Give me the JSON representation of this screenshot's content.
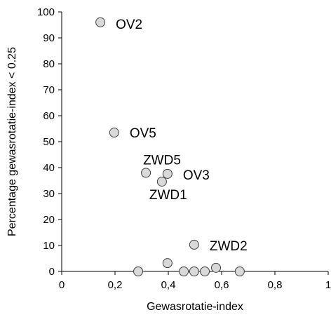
{
  "chart_data": {
    "type": "scatter",
    "x_label": "Gewasrotatie-index",
    "y_label": "Percentage gewasrotatie-index < 0.25",
    "xlim": [
      0,
      1
    ],
    "xticks": [
      0,
      {
        "value": 0.2,
        "label": "0,2"
      },
      {
        "value": 0.4,
        "label": "0,4"
      },
      {
        "value": 0.6,
        "label": "0,6"
      },
      {
        "value": 0.8,
        "label": "0,8"
      },
      1
    ],
    "ylim": [
      0,
      100
    ],
    "yticks": [
      0,
      10,
      20,
      30,
      40,
      50,
      60,
      70,
      80,
      90,
      100
    ],
    "grid": false,
    "series": [
      {
        "color": "#d9d9d9",
        "x": [
          0.145,
          0.197,
          0.316,
          0.397,
          0.376,
          0.497,
          0.397,
          0.287,
          0.458,
          0.497,
          0.537,
          0.579,
          0.668
        ],
        "values": [
          96,
          53.5,
          38,
          37.6,
          34.6,
          10.3,
          3.2,
          0,
          0,
          0,
          0,
          1.4,
          0
        ],
        "labels": [
          "OV2",
          "OV5",
          "ZWD5",
          "OV3",
          "ZWD1",
          "ZWD2",
          null,
          null,
          null,
          null,
          null,
          null,
          null
        ]
      }
    ]
  }
}
